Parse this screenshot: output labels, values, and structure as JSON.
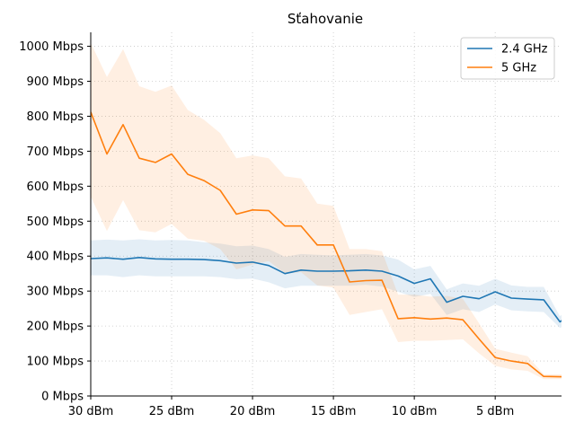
{
  "chart_data": {
    "type": "line",
    "title": "Sťahovanie",
    "xlabel": "",
    "ylabel": "",
    "x": [
      30,
      29,
      28,
      27,
      26,
      25,
      24,
      23,
      22,
      21,
      20,
      19,
      18,
      17,
      16,
      15,
      14,
      13,
      12,
      11,
      10,
      9,
      8,
      7,
      6,
      5,
      4,
      3,
      2,
      1,
      0
    ],
    "xlim": [
      30,
      0.9
    ],
    "ylim": [
      0,
      1040
    ],
    "xticks": [
      30,
      25,
      20,
      15,
      10,
      5
    ],
    "xtick_labels": [
      "30 dBm",
      "25 dBm",
      "20 dBm",
      "15 dBm",
      "10 dBm",
      "5 dBm"
    ],
    "yticks": [
      0,
      100,
      200,
      300,
      400,
      500,
      600,
      700,
      800,
      900,
      1000
    ],
    "ytick_labels": [
      "0 Mbps",
      "100 Mbps",
      "200 Mbps",
      "300 Mbps",
      "400 Mbps",
      "500 Mbps",
      "600 Mbps",
      "700 Mbps",
      "800 Mbps",
      "900 Mbps",
      "1000 Mbps"
    ],
    "grid": true,
    "legend_position": "top-right",
    "series": [
      {
        "name": "2.4 GHz",
        "color": "#1f77b4",
        "values": [
          393,
          395,
          391,
          396,
          392,
          391,
          391,
          390,
          387,
          380,
          383,
          373,
          350,
          360,
          357,
          357,
          358,
          360,
          357,
          343,
          322,
          335,
          268,
          285,
          278,
          298,
          280,
          277,
          275,
          212,
          242
        ],
        "lower": [
          345,
          345,
          340,
          345,
          342,
          342,
          342,
          342,
          340,
          334,
          336,
          325,
          308,
          315,
          315,
          315,
          315,
          318,
          313,
          298,
          283,
          292,
          232,
          248,
          240,
          262,
          245,
          242,
          240,
          195,
          215
        ],
        "upper": [
          445,
          447,
          445,
          448,
          445,
          446,
          445,
          440,
          436,
          428,
          430,
          420,
          398,
          406,
          404,
          402,
          404,
          406,
          402,
          390,
          362,
          372,
          305,
          322,
          315,
          335,
          316,
          312,
          312,
          228,
          268
        ]
      },
      {
        "name": "5 GHz",
        "color": "#ff7f0e",
        "values": [
          812,
          692,
          776,
          680,
          668,
          692,
          634,
          616,
          588,
          520,
          532,
          530,
          486,
          486,
          432,
          432,
          326,
          330,
          331,
          221,
          224,
          220,
          223,
          218,
          163,
          110,
          100,
          93,
          56,
          55,
          55
        ],
        "lower": [
          570,
          472,
          560,
          474,
          468,
          492,
          450,
          444,
          420,
          362,
          376,
          386,
          350,
          354,
          316,
          310,
          232,
          240,
          248,
          154,
          158,
          158,
          160,
          162,
          122,
          86,
          76,
          72,
          48,
          48,
          48
        ],
        "upper": [
          1010,
          912,
          992,
          886,
          870,
          888,
          818,
          790,
          752,
          680,
          688,
          680,
          628,
          622,
          550,
          544,
          420,
          420,
          414,
          290,
          290,
          284,
          286,
          278,
          208,
          135,
          124,
          114,
          62,
          62,
          62
        ]
      }
    ]
  }
}
